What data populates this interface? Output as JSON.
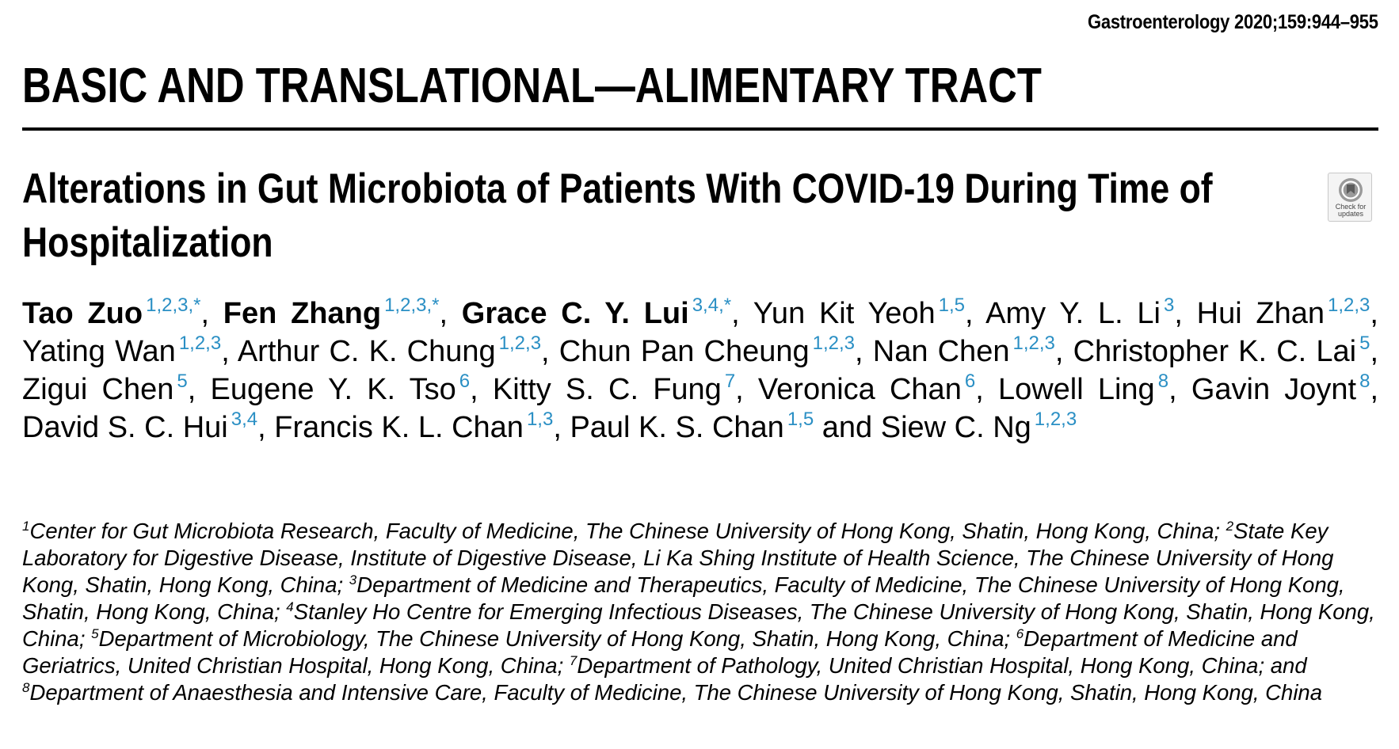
{
  "header": {
    "citation": "Gastroenterology 2020;159:944–955",
    "section": "BASIC AND TRANSLATIONAL—ALIMENTARY TRACT"
  },
  "title": "Alterations in Gut Microbiota of Patients With COVID-19 During Time of Hospitalization",
  "badge": {
    "label_line1": "Check for",
    "label_line2": "updates",
    "icon": "crossmark-icon"
  },
  "authors": [
    {
      "name": "Tao Zuo",
      "aff": "1,2,3,*",
      "bold": true,
      "sep": ", "
    },
    {
      "name": "Fen Zhang",
      "aff": "1,2,3,*",
      "bold": true,
      "sep": ", "
    },
    {
      "name": "Grace C. Y. Lui",
      "aff": "3,4,*",
      "bold": true,
      "sep": ", "
    },
    {
      "name": "Yun Kit Yeoh",
      "aff": "1,5",
      "bold": false,
      "sep": ", "
    },
    {
      "name": "Amy Y. L. Li",
      "aff": "3",
      "bold": false,
      "sep": ", "
    },
    {
      "name": "Hui Zhan",
      "aff": "1,2,3",
      "bold": false,
      "sep": ", "
    },
    {
      "name": "Yating Wan",
      "aff": "1,2,3",
      "bold": false,
      "sep": ", "
    },
    {
      "name": "Arthur C. K. Chung",
      "aff": "1,2,3",
      "bold": false,
      "sep": ", "
    },
    {
      "name": "Chun Pan Cheung",
      "aff": "1,2,3",
      "bold": false,
      "sep": ", "
    },
    {
      "name": "Nan Chen",
      "aff": "1,2,3",
      "bold": false,
      "sep": ", "
    },
    {
      "name": "Christopher K. C. Lai",
      "aff": "5",
      "bold": false,
      "sep": ", "
    },
    {
      "name": "Zigui Chen",
      "aff": "5",
      "bold": false,
      "sep": ", "
    },
    {
      "name": "Eugene Y. K. Tso",
      "aff": "6",
      "bold": false,
      "sep": ", "
    },
    {
      "name": "Kitty S. C. Fung",
      "aff": "7",
      "bold": false,
      "sep": ", "
    },
    {
      "name": "Veronica Chan",
      "aff": "6",
      "bold": false,
      "sep": ", "
    },
    {
      "name": "Lowell Ling",
      "aff": "8",
      "bold": false,
      "sep": ", "
    },
    {
      "name": "Gavin Joynt",
      "aff": "8",
      "bold": false,
      "sep": ", "
    },
    {
      "name": "David S. C. Hui",
      "aff": "3,4",
      "bold": false,
      "sep": ", "
    },
    {
      "name": "Francis K. L. Chan",
      "aff": "1,3",
      "bold": false,
      "sep": ", "
    },
    {
      "name": "Paul K. S. Chan",
      "aff": "1,5",
      "bold": false,
      "sep": " and "
    },
    {
      "name": "Siew C. Ng",
      "aff": "1,2,3",
      "bold": false,
      "sep": ""
    }
  ],
  "affiliations": [
    {
      "num": "1",
      "text": "Center for Gut Microbiota Research, Faculty of Medicine, The Chinese University of Hong Kong, Shatin, Hong Kong, China; "
    },
    {
      "num": "2",
      "text": "State Key Laboratory for Digestive Disease, Institute of Digestive Disease, Li Ka Shing Institute of Health Science, The Chinese University of Hong Kong, Shatin, Hong Kong, China; "
    },
    {
      "num": "3",
      "text": "Department of Medicine and Therapeutics, Faculty of Medicine, The Chinese University of Hong Kong, Shatin, Hong Kong, China; "
    },
    {
      "num": "4",
      "text": "Stanley Ho Centre for Emerging Infectious Diseases, The Chinese University of Hong Kong, Shatin, Hong Kong, China; "
    },
    {
      "num": "5",
      "text": "Department of Microbiology, The Chinese University of Hong Kong, Shatin, Hong Kong, China; "
    },
    {
      "num": "6",
      "text": "Department of Medicine and Geriatrics, United Christian Hospital, Hong Kong, China; "
    },
    {
      "num": "7",
      "text": "Department of Pathology, United Christian Hospital, Hong Kong, China; and "
    },
    {
      "num": "8",
      "text": "Department of Anaesthesia and Intensive Care, Faculty of Medicine, The Chinese University of Hong Kong, Shatin, Hong Kong, China"
    }
  ],
  "colors": {
    "affiliation_link": "#2a8fc4",
    "text": "#000000",
    "rule": "#000000"
  }
}
